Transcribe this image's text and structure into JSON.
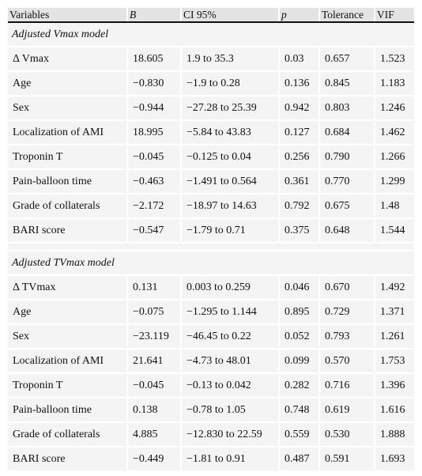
{
  "headers": [
    "Variables",
    "B",
    "CI 95%",
    "p",
    "Tolerance",
    "VIF"
  ],
  "sections": [
    {
      "title": "Adjusted Vmax model",
      "rows": [
        [
          "Δ Vmax",
          "18.605",
          "1.9 to 35.3",
          "0.03",
          "0.657",
          "1.523"
        ],
        [
          "Age",
          "−0.830",
          "−1.9 to 0.28",
          "0.136",
          "0.845",
          "1.183"
        ],
        [
          "Sex",
          "−0.944",
          "−27.28 to 25.39",
          "0.942",
          "0.803",
          "1.246"
        ],
        [
          "Localization of AMI",
          "18.995",
          "−5.84 to 43.83",
          "0.127",
          "0.684",
          "1.462"
        ],
        [
          "Troponin T",
          "−0.045",
          "−0.125 to 0.04",
          "0.256",
          "0.790",
          "1.266"
        ],
        [
          "Pain-balloon time",
          "−0.463",
          "−1.491 to 0.564",
          "0.361",
          "0.770",
          "1.299"
        ],
        [
          "Grade of collaterals",
          "−2.172",
          "−18.97 to 14.63",
          "0.792",
          "0.675",
          "1.48"
        ],
        [
          "BARI score",
          "−0.547",
          "−1.79 to 0.71",
          "0.375",
          "0.648",
          "1.544"
        ]
      ]
    },
    {
      "title": "Adjusted TVmax model",
      "rows": [
        [
          "Δ TVmax",
          "0.131",
          "0.003 to 0.259",
          "0.046",
          "0.670",
          "1.492"
        ],
        [
          "Age",
          "−0.075",
          "−1.295 to 1.144",
          "0.895",
          "0.729",
          "1.371"
        ],
        [
          "Sex",
          "−23.119",
          "−46.45 to 0.22",
          "0.052",
          "0.793",
          "1.261"
        ],
        [
          "Localization of AMI",
          "21.641",
          "−4.73 to 48.01",
          "0.099",
          "0.570",
          "1.753"
        ],
        [
          "Troponin T",
          "−0.045",
          "−0.13 to 0.042",
          "0.282",
          "0.716",
          "1.396"
        ],
        [
          "Pain-balloon time",
          "0.138",
          "−0.78 to 1.05",
          "0.748",
          "0.619",
          "1.616"
        ],
        [
          "Grade of collaterals",
          "4.885",
          "−12.830 to 22.59",
          "0.559",
          "0.530",
          "1.888"
        ],
        [
          "BARI score",
          "−0.449",
          "−1.81 to 0.91",
          "0.487",
          "0.591",
          "1.693"
        ]
      ]
    }
  ]
}
